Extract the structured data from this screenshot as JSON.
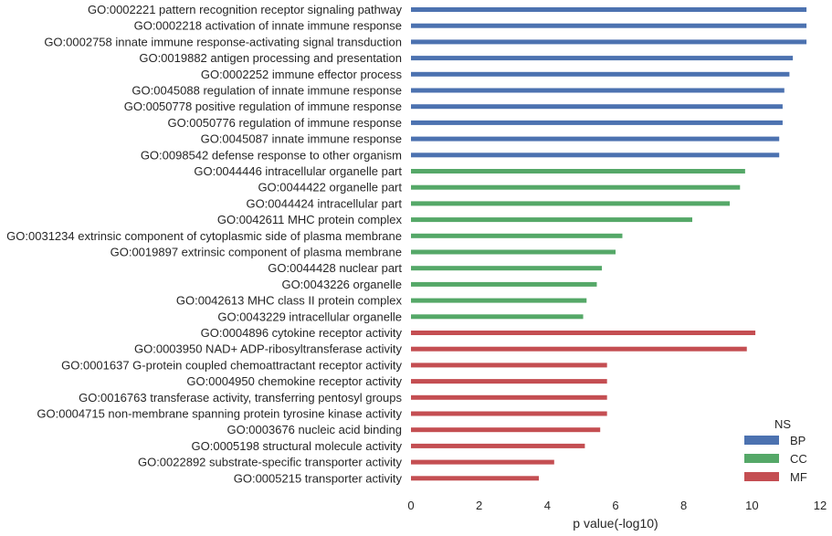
{
  "chart_data": {
    "type": "bar",
    "orientation": "horizontal",
    "xlabel": "p value(-log10)",
    "ylabel": "",
    "xlim": [
      0,
      12
    ],
    "xticks": [
      0,
      2,
      4,
      6,
      8,
      10,
      12
    ],
    "grid": false,
    "legend": {
      "title": "NS",
      "placement": "bottom-right",
      "entries": [
        {
          "name": "BP",
          "color": "#4c72b0"
        },
        {
          "name": "CC",
          "color": "#55a868"
        },
        {
          "name": "MF",
          "color": "#c44e52"
        }
      ]
    },
    "series": [
      {
        "name": "BP",
        "color": "#4c72b0",
        "categories": [
          "GO:0002221 pattern recognition receptor signaling pathway",
          "GO:0002218 activation of innate immune response",
          "GO:0002758 innate immune response-activating signal transduction",
          "GO:0019882 antigen processing and presentation",
          "GO:0002252 immune effector process",
          "GO:0045088 regulation of innate immune response",
          "GO:0050778 positive regulation of immune response",
          "GO:0050776 regulation of immune response",
          "GO:0045087 innate immune response",
          "GO:0098542 defense response to other organism"
        ],
        "values": [
          11.6,
          11.6,
          11.6,
          11.2,
          11.1,
          10.95,
          10.9,
          10.9,
          10.8,
          10.8
        ]
      },
      {
        "name": "CC",
        "color": "#55a868",
        "categories": [
          "GO:0044446 intracellular organelle part",
          "GO:0044422 organelle part",
          "GO:0044424 intracellular part",
          "GO:0042611 MHC protein complex",
          "GO:0031234 extrinsic component of cytoplasmic side of plasma membrane",
          "GO:0019897 extrinsic component of plasma membrane",
          "GO:0044428 nuclear part",
          "GO:0043226 organelle",
          "GO:0042613 MHC class II protein complex",
          "GO:0043229 intracellular organelle"
        ],
        "values": [
          9.8,
          9.65,
          9.35,
          8.25,
          6.2,
          6.0,
          5.6,
          5.45,
          5.15,
          5.05
        ]
      },
      {
        "name": "MF",
        "color": "#c44e52",
        "categories": [
          "GO:0004896 cytokine receptor activity",
          "GO:0003950 NAD+ ADP-ribosyltransferase activity",
          "GO:0001637 G-protein coupled chemoattractant receptor activity",
          "GO:0004950 chemokine receptor activity",
          "GO:0016763 transferase activity, transferring pentosyl groups",
          "GO:0004715 non-membrane spanning protein tyrosine kinase activity",
          "GO:0003676 nucleic acid binding",
          "GO:0005198 structural molecule activity",
          "GO:0022892 substrate-specific transporter activity",
          "GO:0005215 transporter activity"
        ],
        "values": [
          10.1,
          9.85,
          5.75,
          5.75,
          5.75,
          5.75,
          5.55,
          5.1,
          4.2,
          3.75
        ]
      }
    ]
  }
}
